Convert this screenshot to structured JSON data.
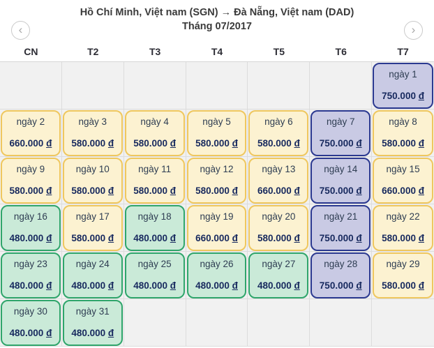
{
  "header": {
    "route": "Hồ Chí Minh, Việt nam (SGN) → Đà Nẵng, Việt nam (DAD)",
    "month": "Tháng 07/2017",
    "prev_icon": "‹",
    "next_icon": "›"
  },
  "calendar": {
    "day_headers": [
      "CN",
      "T2",
      "T3",
      "T4",
      "T5",
      "T6",
      "T7"
    ],
    "day_prefix": "ngày",
    "currency": "đ",
    "colors": {
      "yellow": {
        "bg": "#FCF2D1",
        "border": "#EFC75E"
      },
      "purple": {
        "bg": "#C9CAE4",
        "border": "#2B3990"
      },
      "green": {
        "bg": "#CAEAD8",
        "border": "#2FA56B"
      }
    },
    "weeks": [
      [
        null,
        null,
        null,
        null,
        null,
        null,
        {
          "day": 1,
          "price": "750.000",
          "type": "purple"
        }
      ],
      [
        {
          "day": 2,
          "price": "660.000",
          "type": "yellow"
        },
        {
          "day": 3,
          "price": "580.000",
          "type": "yellow"
        },
        {
          "day": 4,
          "price": "580.000",
          "type": "yellow"
        },
        {
          "day": 5,
          "price": "580.000",
          "type": "yellow"
        },
        {
          "day": 6,
          "price": "580.000",
          "type": "yellow"
        },
        {
          "day": 7,
          "price": "750.000",
          "type": "purple"
        },
        {
          "day": 8,
          "price": "580.000",
          "type": "yellow"
        }
      ],
      [
        {
          "day": 9,
          "price": "580.000",
          "type": "yellow"
        },
        {
          "day": 10,
          "price": "580.000",
          "type": "yellow"
        },
        {
          "day": 11,
          "price": "580.000",
          "type": "yellow"
        },
        {
          "day": 12,
          "price": "580.000",
          "type": "yellow"
        },
        {
          "day": 13,
          "price": "660.000",
          "type": "yellow"
        },
        {
          "day": 14,
          "price": "750.000",
          "type": "purple"
        },
        {
          "day": 15,
          "price": "660.000",
          "type": "yellow"
        }
      ],
      [
        {
          "day": 16,
          "price": "480.000",
          "type": "green"
        },
        {
          "day": 17,
          "price": "580.000",
          "type": "yellow"
        },
        {
          "day": 18,
          "price": "480.000",
          "type": "green"
        },
        {
          "day": 19,
          "price": "660.000",
          "type": "yellow"
        },
        {
          "day": 20,
          "price": "580.000",
          "type": "yellow"
        },
        {
          "day": 21,
          "price": "750.000",
          "type": "purple"
        },
        {
          "day": 22,
          "price": "580.000",
          "type": "yellow"
        }
      ],
      [
        {
          "day": 23,
          "price": "480.000",
          "type": "green"
        },
        {
          "day": 24,
          "price": "480.000",
          "type": "green"
        },
        {
          "day": 25,
          "price": "480.000",
          "type": "green"
        },
        {
          "day": 26,
          "price": "480.000",
          "type": "green"
        },
        {
          "day": 27,
          "price": "480.000",
          "type": "green"
        },
        {
          "day": 28,
          "price": "750.000",
          "type": "purple"
        },
        {
          "day": 29,
          "price": "580.000",
          "type": "yellow"
        }
      ],
      [
        {
          "day": 30,
          "price": "480.000",
          "type": "green"
        },
        {
          "day": 31,
          "price": "480.000",
          "type": "green"
        },
        null,
        null,
        null,
        null,
        null
      ]
    ]
  }
}
